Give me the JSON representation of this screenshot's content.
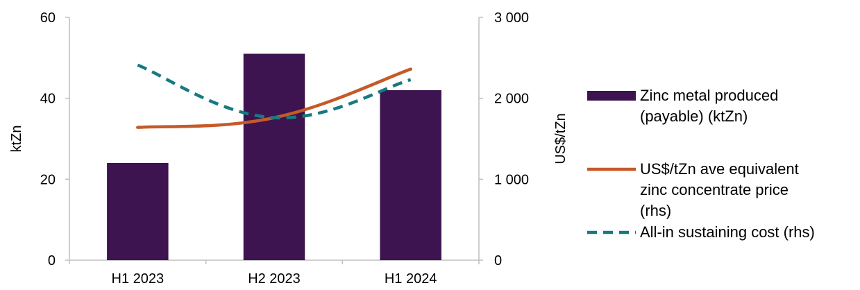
{
  "chart_data": {
    "type": "bar",
    "title": "",
    "categories": [
      "H1 2023",
      "H2 2023",
      "H1 2024"
    ],
    "y_left": {
      "label": "ktZn",
      "range": [
        0,
        60
      ],
      "ticks": [
        "0",
        "20",
        "40",
        "60"
      ]
    },
    "y_right": {
      "label": "US$/tZn",
      "range": [
        0,
        3000
      ],
      "ticks": [
        "0",
        "1 000",
        "2 000",
        "3 000"
      ]
    },
    "series": [
      {
        "name_lines": [
          "Zinc metal produced",
          "(payable) (ktZn)"
        ],
        "type": "bar",
        "axis": "left",
        "color": "#3d1450",
        "values": [
          24,
          51,
          42
        ]
      },
      {
        "name_lines": [
          "US$/tZn ave equivalent",
          "zinc concentrate price",
          "(rhs)"
        ],
        "type": "line",
        "axis": "right",
        "color": "#c55a28",
        "style": "solid",
        "values": [
          1640,
          1760,
          2360
        ]
      },
      {
        "name_lines": [
          "All-in sustaining cost (rhs)"
        ],
        "type": "line",
        "axis": "right",
        "color": "#167a80",
        "style": "dashed",
        "values": [
          2410,
          1760,
          2230
        ]
      }
    ],
    "grid": false,
    "legend_position": "right"
  }
}
